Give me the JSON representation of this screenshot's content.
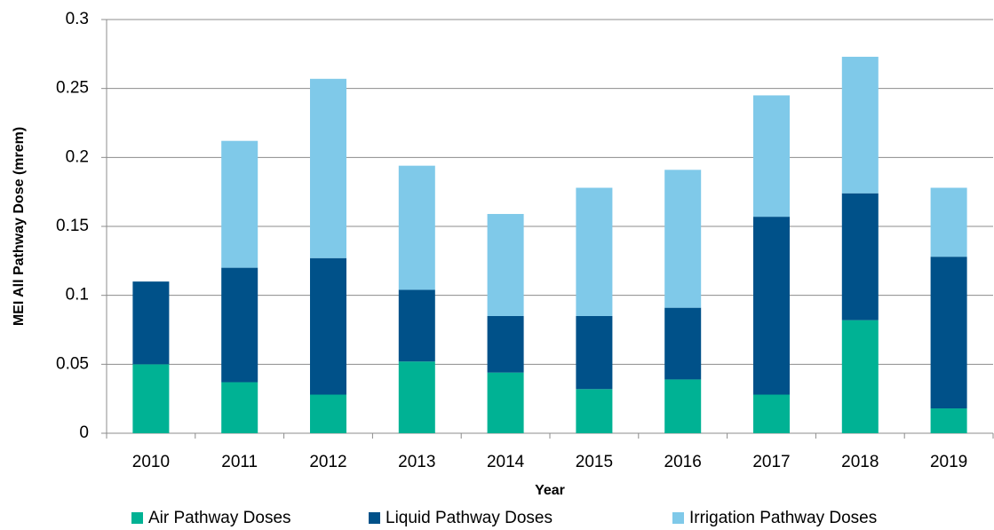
{
  "chart_data": {
    "type": "stacked-bar",
    "y_label": "MEI All Pathway Dose (mrem)",
    "x_label": "Year",
    "categories": [
      "2010",
      "2011",
      "2012",
      "2013",
      "2014",
      "2015",
      "2016",
      "2017",
      "2018",
      "2019"
    ],
    "series": [
      {
        "name": "Air Pathway Doses",
        "color": "#00b294",
        "values": [
          0.05,
          0.037,
          0.028,
          0.052,
          0.044,
          0.032,
          0.039,
          0.028,
          0.082,
          0.018
        ]
      },
      {
        "name": "Liquid Pathway Doses",
        "color": "#005189",
        "values": [
          0.06,
          0.083,
          0.099,
          0.052,
          0.041,
          0.053,
          0.052,
          0.129,
          0.092,
          0.11
        ]
      },
      {
        "name": "Irrigation Pathway Doses",
        "color": "#7fc9e9",
        "values": [
          0,
          0.092,
          0.13,
          0.09,
          0.074,
          0.093,
          0.1,
          0.088,
          0.099,
          0.05
        ]
      }
    ],
    "ylim": [
      0,
      0.3
    ],
    "yticks": [
      0,
      0.05,
      0.1,
      0.15,
      0.2,
      0.25,
      0.3
    ],
    "grid": true
  }
}
